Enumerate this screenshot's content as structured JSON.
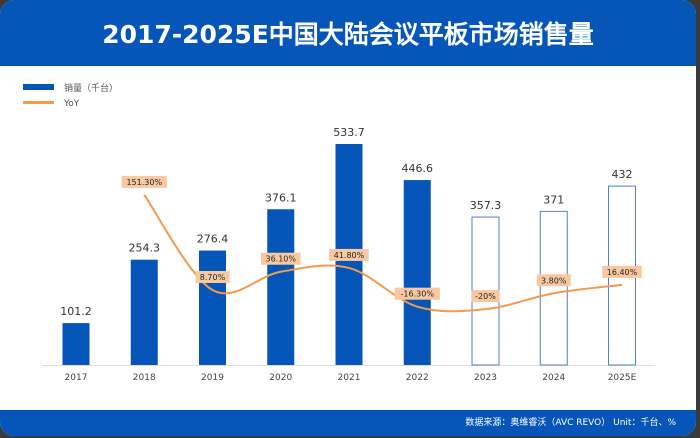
{
  "title": "2017-2025E中国大陆会议平板市场销售量",
  "footer": "数据来源：奥维睿沃（AVC REVO） Unit：千台、%",
  "colors": {
    "bar": "#0556b8",
    "bar_forecast_stroke": "#4d7fd6",
    "line": "#f59a4d",
    "label_bg": "#f8c9a1"
  },
  "chart_data": {
    "type": "bar",
    "categories": [
      "2017",
      "2018",
      "2019",
      "2020",
      "2021",
      "2022",
      "2023",
      "2024",
      "2025E"
    ],
    "series": [
      {
        "name": "销量（千台）",
        "type": "bar",
        "values": [
          101.2,
          254.3,
          276.4,
          376.1,
          533.7,
          446.6,
          357.3,
          371,
          432
        ],
        "value_labels": [
          "101.2",
          "254.3",
          "276.4",
          "376.1",
          "533.7",
          "446.6",
          "357.3",
          "371",
          "432"
        ],
        "forecast_from_index": 6
      },
      {
        "name": "YoY",
        "type": "line",
        "values": [
          null,
          151.3,
          8.7,
          36.1,
          41.8,
          -16.3,
          -20,
          3.8,
          16.4
        ],
        "value_labels": [
          null,
          "151.30%",
          "8.70%",
          "36.10%",
          "41.80%",
          "-16.30%",
          "-20%",
          "3.80%",
          "16.40%"
        ]
      }
    ],
    "legend": "top-left"
  }
}
